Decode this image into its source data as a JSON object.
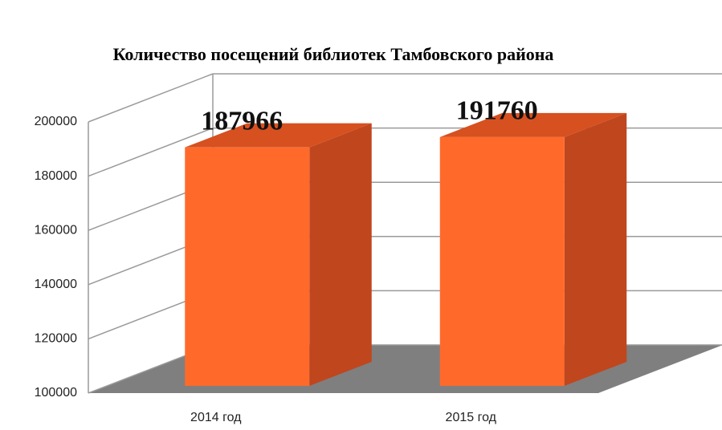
{
  "chart_data": {
    "type": "bar3d",
    "title": "Количество посещений библиотек Тамбовского района",
    "categories": [
      "2014 год",
      "2015 год"
    ],
    "values": [
      187966,
      191760
    ],
    "color": "#ff6a2b",
    "ylim": [
      100000,
      200000
    ],
    "yticks": [
      100000,
      120000,
      140000,
      160000,
      180000,
      200000
    ],
    "grid": true
  }
}
